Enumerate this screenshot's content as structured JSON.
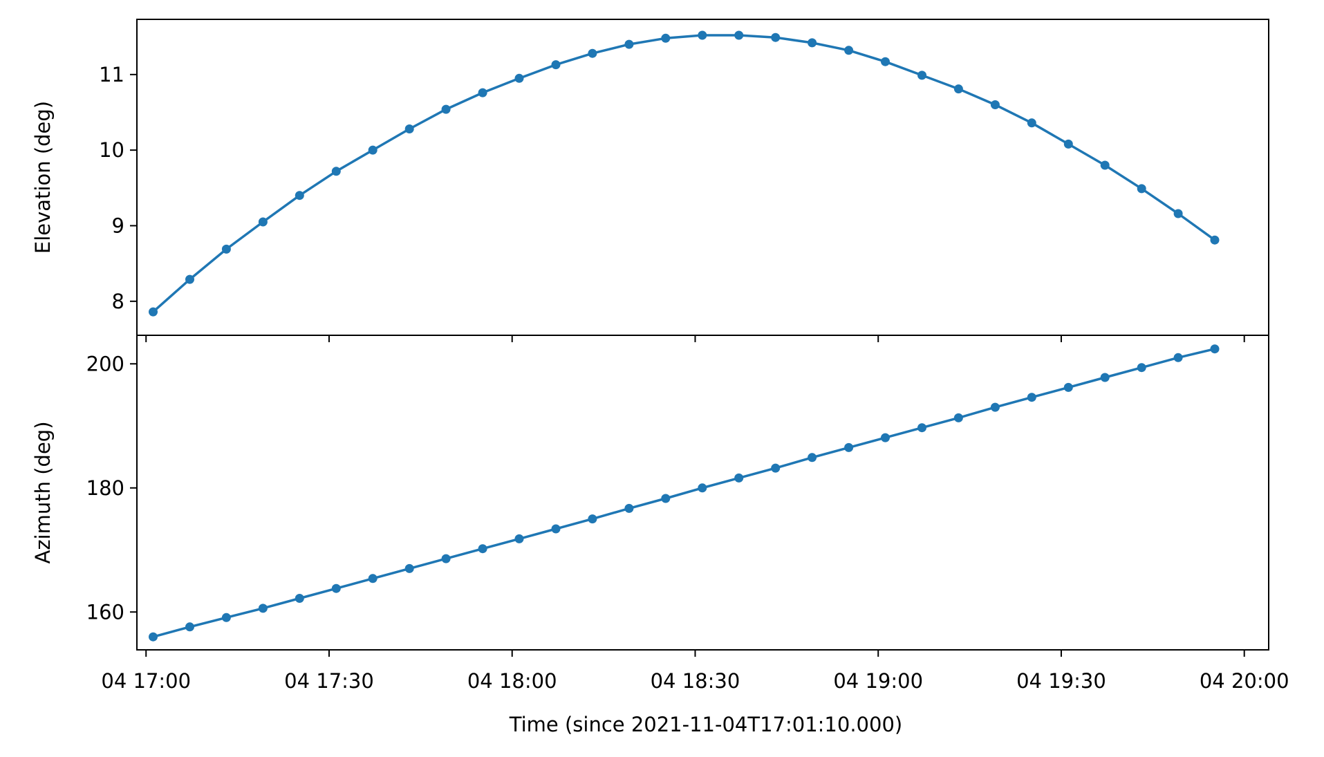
{
  "chart_data": {
    "type": "line",
    "xlabel": "Time (since 2021-11-04T17:01:10.000)",
    "x_tick_labels": [
      "04 17:00",
      "04 17:30",
      "04 18:00",
      "04 18:30",
      "04 19:00",
      "04 19:30",
      "04 20:00"
    ],
    "x": [
      "17:01:10",
      "17:07:10",
      "17:13:10",
      "17:19:10",
      "17:25:10",
      "17:31:10",
      "17:37:10",
      "17:43:10",
      "17:49:10",
      "17:55:10",
      "18:01:10",
      "18:07:10",
      "18:13:10",
      "18:19:10",
      "18:25:10",
      "18:31:10",
      "18:37:10",
      "18:43:10",
      "18:49:10",
      "18:55:10",
      "19:01:10",
      "19:07:10",
      "19:13:10",
      "19:19:10",
      "19:25:10",
      "19:31:10",
      "19:37:10",
      "19:43:10",
      "19:49:10",
      "19:55:10"
    ],
    "xlim": [
      "16:58:30",
      "20:04:00"
    ],
    "color": "#1f77b4",
    "marker": "circle",
    "grid": false,
    "subplots": [
      {
        "ylabel": "Elevation (deg)",
        "ylim": [
          7.55,
          11.73
        ],
        "yticks": [
          8,
          9,
          10,
          11
        ],
        "y_tick_labels": [
          "8",
          "9",
          "10",
          "11"
        ],
        "values": [
          7.86,
          8.29,
          8.69,
          9.05,
          9.4,
          9.72,
          10.0,
          10.28,
          10.54,
          10.76,
          10.95,
          11.13,
          11.28,
          11.4,
          11.48,
          11.52,
          11.52,
          11.49,
          11.42,
          11.32,
          11.17,
          10.99,
          10.81,
          10.6,
          10.36,
          10.08,
          9.8,
          9.49,
          9.16,
          8.81
        ]
      },
      {
        "ylabel": "Azimuth (deg)",
        "ylim": [
          153.9,
          204.6
        ],
        "yticks": [
          160,
          180,
          200
        ],
        "y_tick_labels": [
          "160",
          "180",
          "200"
        ],
        "values": [
          156.0,
          157.6,
          159.1,
          160.6,
          162.2,
          163.8,
          165.4,
          167.0,
          168.6,
          170.2,
          171.8,
          173.4,
          175.0,
          176.7,
          178.3,
          180.0,
          181.6,
          183.2,
          184.9,
          186.5,
          188.1,
          189.7,
          191.3,
          193.0,
          194.6,
          196.2,
          197.8,
          199.4,
          201.0,
          202.4
        ]
      }
    ]
  }
}
